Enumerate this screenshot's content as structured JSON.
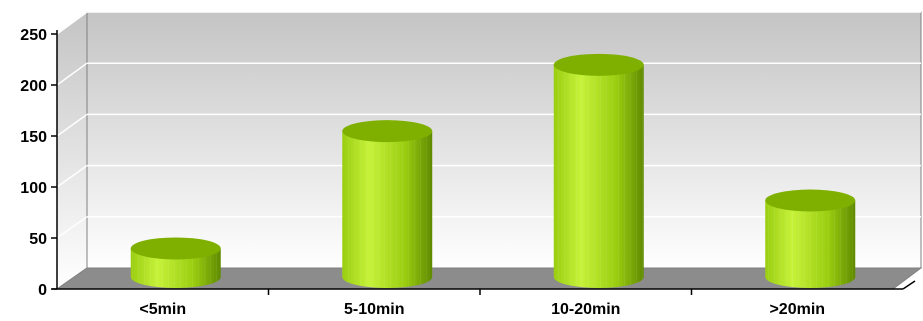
{
  "chart_data": {
    "type": "bar",
    "style": "3d-cylinder",
    "title": "",
    "xlabel": "",
    "ylabel": "",
    "categories": [
      "<5min",
      "5-10min",
      "10-20min",
      ">20min"
    ],
    "values": [
      28,
      143,
      208,
      75
    ],
    "ylim": [
      0,
      250
    ],
    "yticks": [
      "0",
      "50",
      "100",
      "150",
      "200",
      "250"
    ],
    "grid": true,
    "legend": "none",
    "colors": {
      "bar_light": "#c6f23a",
      "bar_mid": "#9acd10",
      "bar_dark": "#5f8a00",
      "bar_top": "#7fb000",
      "wall_top": "#c4c4c4",
      "wall_bottom": "#ffffff",
      "floor": "#8c8c8c",
      "gridline": "#ffffff"
    }
  }
}
